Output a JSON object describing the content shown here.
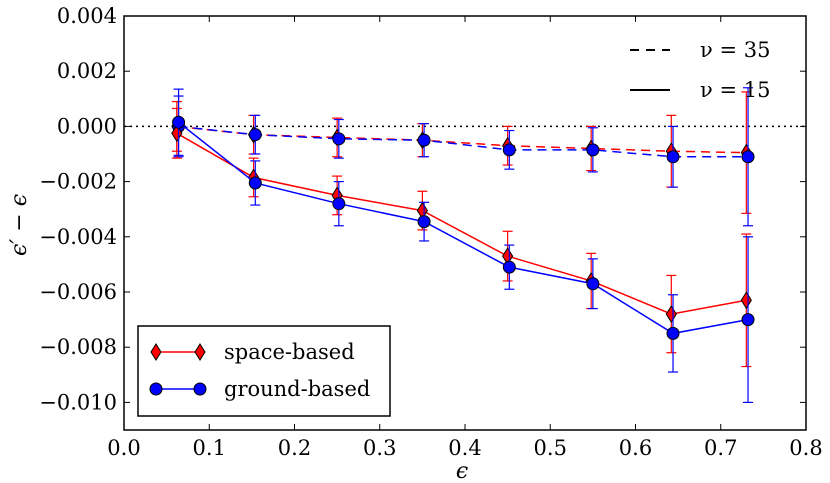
{
  "chart_data": {
    "type": "line",
    "xlabel": "ϵ",
    "ylabel": "ϵ′ − ϵ",
    "xlim": [
      0.0,
      0.8
    ],
    "ylim": [
      -0.011,
      0.004
    ],
    "x_ticks": [
      0.0,
      0.1,
      0.2,
      0.3,
      0.4,
      0.5,
      0.6,
      0.7,
      0.8
    ],
    "x_tick_labels": [
      "0.0",
      "0.1",
      "0.2",
      "0.3",
      "0.4",
      "0.5",
      "0.6",
      "0.7",
      "0.8"
    ],
    "y_ticks": [
      0.004,
      0.002,
      0.0,
      -0.002,
      -0.004,
      -0.006,
      -0.008,
      -0.01
    ],
    "y_tick_labels": [
      "0.004",
      "0.002",
      "0.000",
      "−0.002",
      "−0.004",
      "−0.006",
      "−0.008",
      "−0.010"
    ],
    "reference_line": {
      "y": 0.0,
      "style": "dotted"
    },
    "style_legend": [
      {
        "label": "ν = 35",
        "linestyle": "dashed"
      },
      {
        "label": "ν = 15",
        "linestyle": "solid"
      }
    ],
    "series": [
      {
        "name": "space-based",
        "nu": 35,
        "linestyle": "dashed",
        "marker": "diamond",
        "color": "#ff0000",
        "x": [
          0.062,
          0.152,
          0.25,
          0.35,
          0.45,
          0.548,
          0.642,
          0.73
        ],
        "y": [
          0.0,
          -0.0003,
          -0.0004,
          -0.0005,
          -0.0007,
          -0.0008,
          -0.0009,
          -0.00095
        ],
        "err": [
          0.0009,
          0.0007,
          0.0007,
          0.0006,
          0.0007,
          0.0008,
          0.0013,
          0.0022
        ]
      },
      {
        "name": "ground-based",
        "nu": 35,
        "linestyle": "dashed",
        "marker": "circle",
        "color": "#0000ff",
        "x": [
          0.064,
          0.154,
          0.252,
          0.352,
          0.452,
          0.55,
          0.644,
          0.732
        ],
        "y": [
          0.0,
          -0.0003,
          -0.00045,
          -0.0005,
          -0.00085,
          -0.00085,
          -0.0011,
          -0.0011
        ],
        "err": [
          0.0011,
          0.0007,
          0.0007,
          0.0006,
          0.0007,
          0.0008,
          0.0011,
          0.0025
        ]
      },
      {
        "name": "space-based",
        "nu": 15,
        "linestyle": "solid",
        "marker": "diamond",
        "color": "#ff0000",
        "x": [
          0.062,
          0.152,
          0.25,
          0.35,
          0.45,
          0.548,
          0.642,
          0.73
        ],
        "y": [
          -0.00025,
          -0.00185,
          -0.0025,
          -0.00305,
          -0.0047,
          -0.0056,
          -0.0068,
          -0.0063
        ],
        "err": [
          0.0009,
          0.0007,
          0.0007,
          0.0007,
          0.0009,
          0.001,
          0.0014,
          0.0024
        ]
      },
      {
        "name": "ground-based",
        "nu": 15,
        "linestyle": "solid",
        "marker": "circle",
        "color": "#0000ff",
        "x": [
          0.064,
          0.154,
          0.252,
          0.352,
          0.452,
          0.55,
          0.644,
          0.732
        ],
        "y": [
          0.00015,
          -0.00205,
          -0.0028,
          -0.00345,
          -0.0051,
          -0.0057,
          -0.0075,
          -0.007
        ],
        "err": [
          0.0012,
          0.0008,
          0.0008,
          0.0007,
          0.0008,
          0.0009,
          0.0014,
          0.003
        ]
      }
    ],
    "legend": {
      "placement": "lower-left",
      "entries": [
        {
          "label": "space-based",
          "marker": "diamond",
          "color": "#ff0000"
        },
        {
          "label": "ground-based",
          "marker": "circle",
          "color": "#0000ff"
        }
      ]
    }
  }
}
